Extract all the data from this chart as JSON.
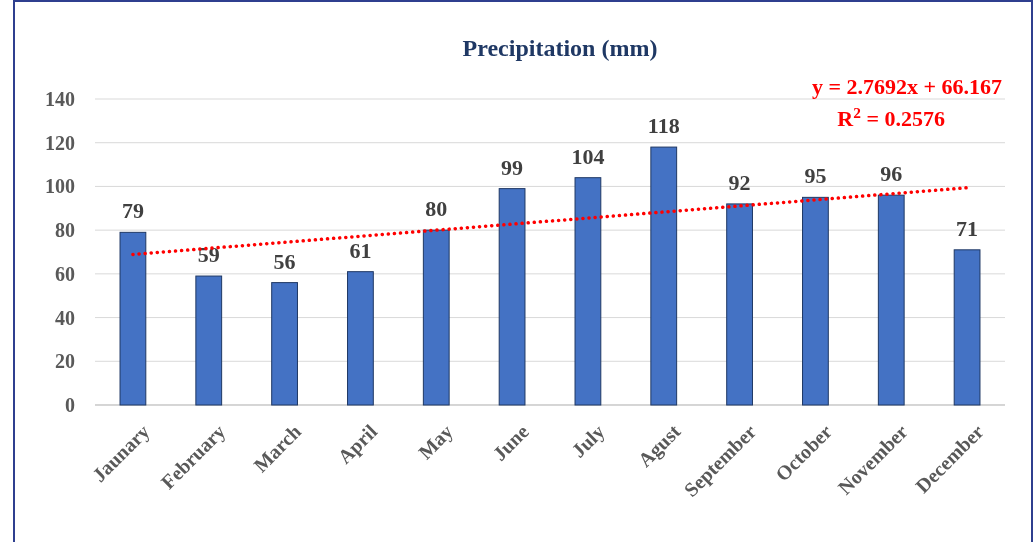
{
  "chart_data": {
    "type": "bar",
    "title": "Precipitation (mm)",
    "categories": [
      "Jaunary",
      "February",
      "March",
      "April",
      "May",
      "June",
      "July",
      "Agust",
      "September",
      "October",
      "November",
      "December"
    ],
    "series": [
      {
        "color": "#4472c4",
        "values": [
          79,
          59,
          56,
          61,
          80,
          99,
          104,
          118,
          92,
          95,
          96,
          71
        ],
        "value_labels": [
          "79",
          "59",
          "56",
          "61",
          "80",
          "99",
          "104",
          "118",
          "92",
          "95",
          "96",
          "71"
        ]
      },
      {
        "type": "line",
        "color": "#ff0000",
        "x": [
          "Jaunary",
          "December"
        ],
        "values": [
          68.9,
          99.4
        ],
        "line_style": "dotted",
        "marker": "none"
      }
    ],
    "ylim": [
      0,
      140
    ],
    "yticks": [
      0,
      20,
      40,
      60,
      80,
      100,
      120,
      140
    ],
    "grid": "y",
    "annotations": [
      "y = 2.7692x + 66.167",
      "R$^{2}$ = 0.2576"
    ]
  }
}
